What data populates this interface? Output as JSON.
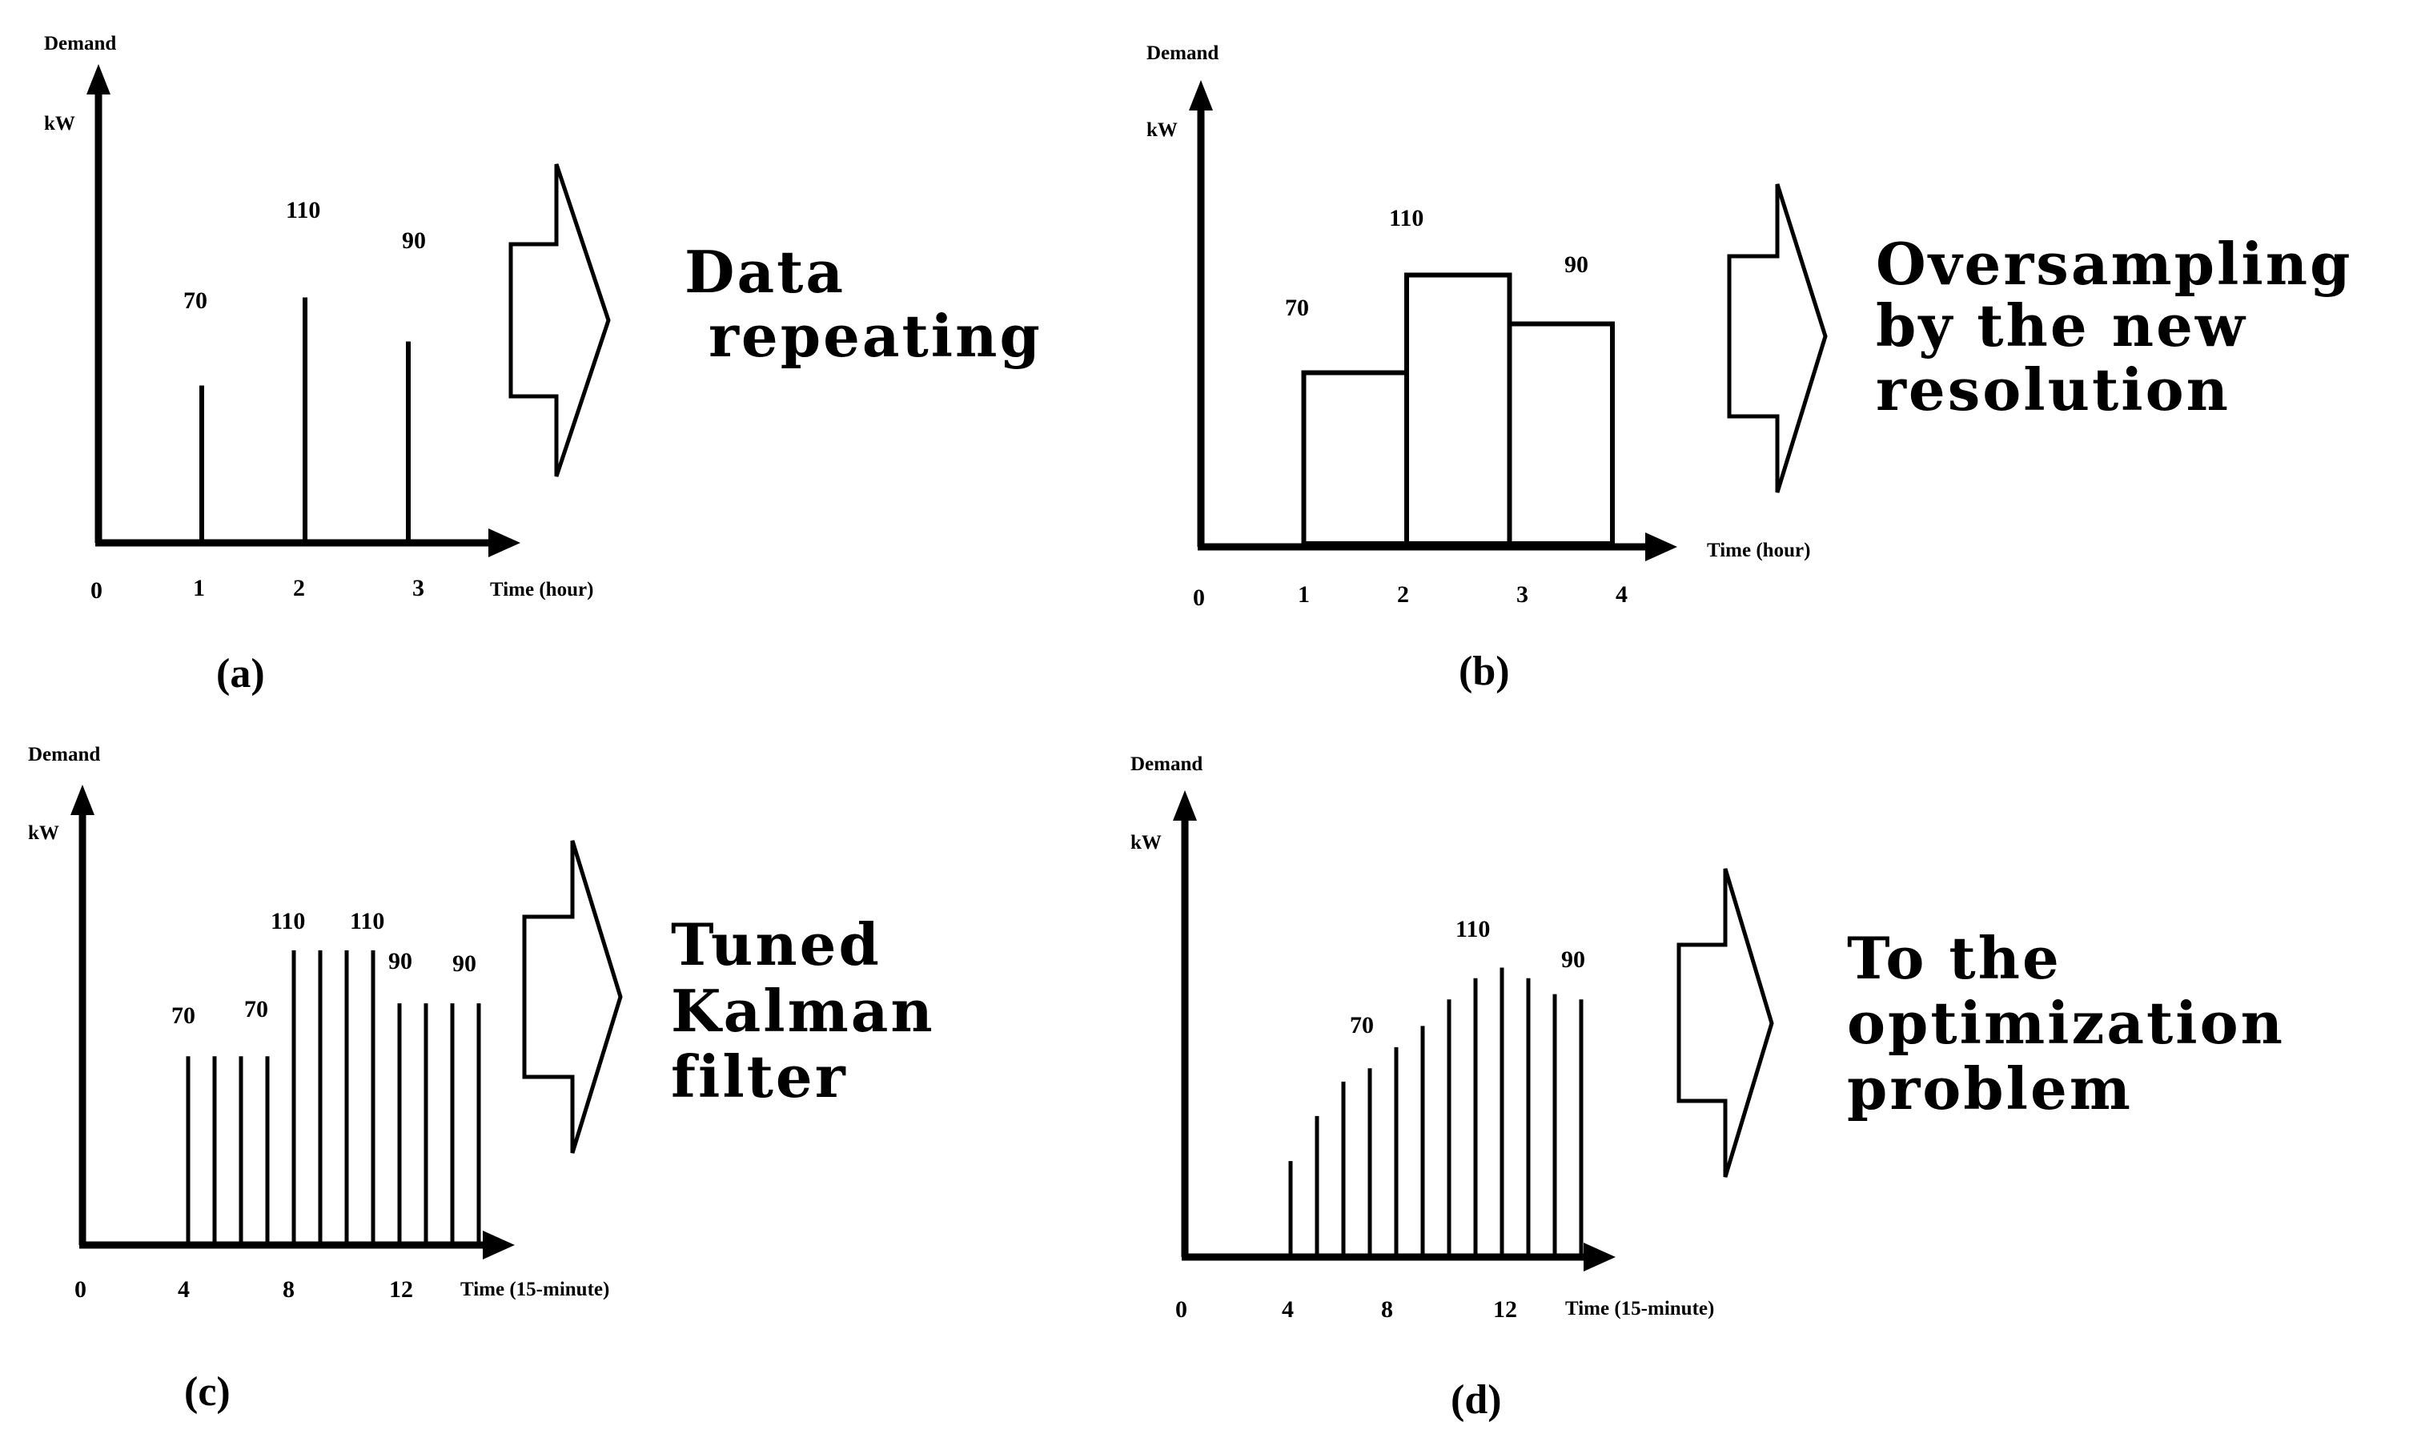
{
  "panels": [
    {
      "id": "a",
      "caption": "(a)",
      "ylabel_top": "Demand",
      "ylabel_unit": "kW",
      "xlabel": "Time (hour)",
      "ticks": [
        "0",
        "1",
        "2",
        "3"
      ],
      "value_labels": [
        "70",
        "110",
        "90"
      ],
      "arrow_text": [
        "Data",
        "repeating"
      ]
    },
    {
      "id": "b",
      "caption": "(b)",
      "ylabel_top": "Demand",
      "ylabel_unit": "kW",
      "xlabel": "Time (hour)",
      "ticks": [
        "0",
        "1",
        "2",
        "3",
        "4"
      ],
      "value_labels": [
        "70",
        "110",
        "90"
      ],
      "arrow_text": [
        "Oversampling",
        "by the new",
        "resolution"
      ]
    },
    {
      "id": "c",
      "caption": "(c)",
      "ylabel_top": "Demand",
      "ylabel_unit": "kW",
      "xlabel": "Time (15-minute)",
      "ticks": [
        "0",
        "4",
        "8",
        "12"
      ],
      "value_labels": [
        "70",
        "70",
        "110",
        "110",
        "90",
        "90"
      ],
      "arrow_text": [
        "Tuned",
        "Kalman",
        "filter"
      ]
    },
    {
      "id": "d",
      "caption": "(d)",
      "ylabel_top": "Demand",
      "ylabel_unit": "kW",
      "xlabel": "Time (15-minute)",
      "ticks": [
        "0",
        "4",
        "8",
        "12"
      ],
      "value_labels": [
        "70",
        "110",
        "90"
      ],
      "arrow_text": [
        "To the",
        "optimization",
        "problem"
      ]
    }
  ],
  "chart_data": [
    {
      "type": "bar",
      "panel": "a",
      "style": "stem",
      "x": [
        1,
        2,
        3
      ],
      "values": [
        70,
        110,
        90
      ],
      "xlabel": "Time (hour)",
      "ylabel": "Demand kW"
    },
    {
      "type": "bar",
      "panel": "b",
      "style": "step",
      "x": [
        [
          1,
          2
        ],
        [
          2,
          3
        ],
        [
          3,
          4
        ]
      ],
      "values": [
        70,
        110,
        90
      ],
      "xlabel": "Time (hour)",
      "ylabel": "Demand kW"
    },
    {
      "type": "bar",
      "panel": "c",
      "style": "stem",
      "x": [
        4,
        5,
        6,
        7,
        8,
        9,
        10,
        11,
        12,
        13,
        14,
        15
      ],
      "values": [
        70,
        70,
        70,
        70,
        110,
        110,
        110,
        110,
        90,
        90,
        90,
        90
      ],
      "xlabel": "Time (15-minute)",
      "ylabel": "Demand kW"
    },
    {
      "type": "bar",
      "panel": "d",
      "style": "stem",
      "x": [
        4,
        5,
        6,
        7,
        8,
        9,
        10,
        11,
        12,
        13,
        14,
        15
      ],
      "values": [
        35,
        52,
        65,
        70,
        78,
        86,
        96,
        104,
        108,
        104,
        98,
        96
      ],
      "xlabel": "Time (15-minute)",
      "ylabel": "Demand kW"
    }
  ]
}
